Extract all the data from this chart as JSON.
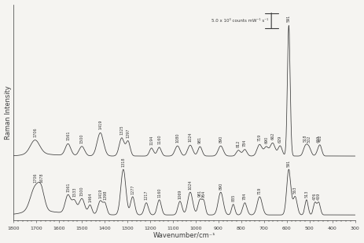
{
  "xlabel": "Wavenumber/cm⁻¹",
  "ylabel": "Raman Intensity",
  "xlim": [
    1800,
    300
  ],
  "scale_label": "5.0 x 10³ counts mW⁻¹ s⁻¹",
  "top_peaks": {
    "positions": [
      1706,
      1561,
      1500,
      1419,
      1325,
      1297,
      1194,
      1160,
      1080,
      1024,
      981,
      890,
      812,
      784,
      719,
      690,
      662,
      629,
      591,
      518,
      502,
      459,
      452
    ],
    "labels": [
      "1706",
      "1561",
      "1500",
      "1419",
      "1325",
      "1297",
      "1194",
      "1160",
      "1080",
      "1024",
      "981",
      "890",
      "812",
      "784",
      "719",
      "690",
      "662",
      "629",
      "591",
      "518",
      "502",
      "459",
      "452"
    ]
  },
  "bottom_peaks": {
    "positions": [
      1706,
      1678,
      1561,
      1533,
      1500,
      1464,
      1419,
      1398,
      1318,
      1277,
      1217,
      1160,
      1069,
      1024,
      981,
      964,
      890,
      835,
      784,
      719,
      591,
      563,
      513,
      476,
      459
    ],
    "labels": [
      "1706",
      "1678",
      "1561",
      "1533",
      "1500",
      "1464",
      "1419",
      "1398",
      "1318",
      "1277",
      "1217",
      "1160",
      "1069",
      "1024",
      "981",
      "964",
      "890",
      "835",
      "784",
      "719",
      "591",
      "563",
      "513",
      "476",
      "459"
    ]
  },
  "background_color": "#f5f4f1",
  "line_color": "#3a3a3a",
  "tick_label_fontsize": 4.5,
  "axis_label_fontsize": 6.0,
  "peak_label_fontsize": 3.5
}
